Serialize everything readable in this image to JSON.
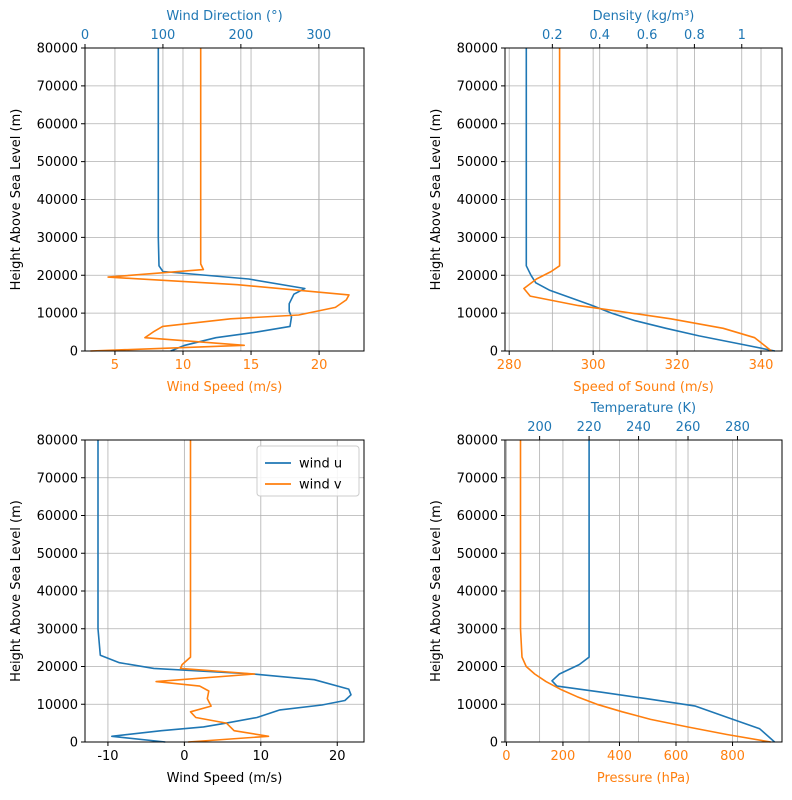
{
  "colors": {
    "c1": "#1f77b4",
    "c2": "#ff7f0e",
    "axis": "#000000",
    "grid": "#b0b0b0"
  },
  "chart_data": [
    {
      "id": "wind",
      "type": "line",
      "ylabel": "Height Above Sea Level (m)",
      "ylim": [
        0,
        80000
      ],
      "yticks": [
        0,
        10000,
        20000,
        30000,
        40000,
        50000,
        60000,
        70000,
        80000
      ],
      "grid": true,
      "bottom_axis": {
        "label": "Wind Speed (m/s)",
        "color": "#ff7f0e",
        "lim": [
          2.8,
          23.3
        ],
        "ticks": [
          5,
          10,
          15,
          20
        ]
      },
      "top_axis": {
        "label": "Wind Direction (°)",
        "color": "#1f77b4",
        "lim": [
          0,
          358
        ],
        "ticks": [
          0,
          100,
          200,
          300
        ]
      },
      "series": [
        {
          "axis": "top",
          "color": "#1f77b4",
          "points": [
            [
              110,
              0
            ],
            [
              128,
              1500
            ],
            [
              168,
              3500
            ],
            [
              220,
              5000
            ],
            [
              263,
              6500
            ],
            [
              265,
              9000
            ],
            [
              262,
              10500
            ],
            [
              262,
              12500
            ],
            [
              268,
              15000
            ],
            [
              282,
              16500
            ],
            [
              210,
              19000
            ],
            [
              100,
              21000
            ],
            [
              95,
              22500
            ],
            [
              94,
              30000
            ],
            [
              94,
              50000
            ],
            [
              94,
              70000
            ],
            [
              94,
              80000
            ]
          ]
        },
        {
          "axis": "bottom",
          "color": "#ff7f0e",
          "points": [
            [
              3.2,
              0
            ],
            [
              14.5,
              1500
            ],
            [
              7.2,
              3500
            ],
            [
              7.8,
              5000
            ],
            [
              8.5,
              6500
            ],
            [
              13.5,
              8500
            ],
            [
              18.5,
              9500
            ],
            [
              21.2,
              11500
            ],
            [
              22.0,
              13500
            ],
            [
              22.2,
              14800
            ],
            [
              14.0,
              17500
            ],
            [
              4.5,
              19500
            ],
            [
              11.5,
              21500
            ],
            [
              11.3,
              23000
            ],
            [
              11.3,
              30000
            ],
            [
              11.3,
              50000
            ],
            [
              11.3,
              70000
            ],
            [
              11.3,
              80000
            ]
          ]
        }
      ]
    },
    {
      "id": "density",
      "type": "line",
      "ylabel": "Height Above Sea Level (m)",
      "ylim": [
        0,
        80000
      ],
      "yticks": [
        0,
        10000,
        20000,
        30000,
        40000,
        50000,
        60000,
        70000,
        80000
      ],
      "grid": true,
      "bottom_axis": {
        "label": "Speed of Sound (m/s)",
        "color": "#ff7f0e",
        "lim": [
          279,
          345
        ],
        "ticks": [
          280,
          300,
          320,
          340
        ]
      },
      "top_axis": {
        "label": "Density (kg/m³)",
        "color": "#1f77b4",
        "lim": [
          0.0,
          1.17
        ],
        "ticks": [
          0.2,
          0.4,
          0.6,
          0.8,
          1.0
        ]
      },
      "series": [
        {
          "axis": "top",
          "color": "#1f77b4",
          "points": [
            [
              1.14,
              0
            ],
            [
              0.98,
              2000
            ],
            [
              0.82,
              4000
            ],
            [
              0.68,
              6000
            ],
            [
              0.55,
              8000
            ],
            [
              0.45,
              10000
            ],
            [
              0.37,
              12000
            ],
            [
              0.28,
              14000
            ],
            [
              0.19,
              16000
            ],
            [
              0.13,
              18000
            ],
            [
              0.11,
              20000
            ],
            [
              0.09,
              22500
            ],
            [
              0.09,
              30000
            ],
            [
              0.09,
              50000
            ],
            [
              0.09,
              80000
            ]
          ]
        },
        {
          "axis": "bottom",
          "color": "#ff7f0e",
          "points": [
            [
              342.5,
              0
            ],
            [
              338.5,
              3500
            ],
            [
              331.0,
              6000
            ],
            [
              318.5,
              8500
            ],
            [
              306.0,
              10500
            ],
            [
              296.5,
              12000
            ],
            [
              285.0,
              14500
            ],
            [
              283.5,
              16500
            ],
            [
              286.5,
              19000
            ],
            [
              290.0,
              21000
            ],
            [
              292.0,
              22500
            ],
            [
              292.0,
              30000
            ],
            [
              292.0,
              50000
            ],
            [
              292.0,
              80000
            ]
          ]
        }
      ]
    },
    {
      "id": "wind-uv",
      "type": "line",
      "ylabel": "Height Above Sea Level (m)",
      "xlabel": "Wind Speed (m/s)",
      "ylim": [
        0,
        80000
      ],
      "yticks": [
        0,
        10000,
        20000,
        30000,
        40000,
        50000,
        60000,
        70000,
        80000
      ],
      "xlim": [
        -13,
        23.5
      ],
      "xticks": [
        -10,
        0,
        10,
        20
      ],
      "grid": true,
      "legend": {
        "position": "top-right",
        "entries": [
          "wind u",
          "wind v"
        ]
      },
      "series": [
        {
          "name": "wind u",
          "color": "#1f77b4",
          "points": [
            [
              -2.5,
              0
            ],
            [
              -9.5,
              1500
            ],
            [
              -3.0,
              3000
            ],
            [
              2.5,
              4000
            ],
            [
              5.5,
              5000
            ],
            [
              9.5,
              6500
            ],
            [
              12.5,
              8500
            ],
            [
              18.0,
              9800
            ],
            [
              21.0,
              11000
            ],
            [
              21.8,
              12500
            ],
            [
              21.5,
              14000
            ],
            [
              17.0,
              16500
            ],
            [
              9.0,
              18000
            ],
            [
              -4.0,
              19500
            ],
            [
              -8.5,
              21000
            ],
            [
              -11.0,
              23000
            ],
            [
              -11.3,
              30000
            ],
            [
              -11.3,
              50000
            ],
            [
              -11.3,
              80000
            ]
          ]
        },
        {
          "name": "wind v",
          "color": "#ff7f0e",
          "points": [
            [
              0.5,
              0
            ],
            [
              11.0,
              1500
            ],
            [
              6.5,
              3000
            ],
            [
              5.5,
              5000
            ],
            [
              1.5,
              6500
            ],
            [
              0.8,
              8000
            ],
            [
              3.5,
              9500
            ],
            [
              3.0,
              11500
            ],
            [
              3.2,
              13500
            ],
            [
              2.0,
              14800
            ],
            [
              -3.7,
              16000
            ],
            [
              9.2,
              18000
            ],
            [
              -0.5,
              19500
            ],
            [
              -0.3,
              20500
            ],
            [
              0.8,
              22500
            ],
            [
              0.8,
              30000
            ],
            [
              0.8,
              50000
            ],
            [
              0.8,
              80000
            ]
          ]
        }
      ]
    },
    {
      "id": "temp-pressure",
      "type": "line",
      "ylabel": "Height Above Sea Level (m)",
      "ylim": [
        0,
        80000
      ],
      "yticks": [
        0,
        10000,
        20000,
        30000,
        40000,
        50000,
        60000,
        70000,
        80000
      ],
      "grid": true,
      "bottom_axis": {
        "label": "Pressure (hPa)",
        "color": "#ff7f0e",
        "lim": [
          -5,
          975
        ],
        "ticks": [
          0,
          200,
          400,
          600,
          800
        ]
      },
      "top_axis": {
        "label": "Temperature (K)",
        "color": "#1f77b4",
        "lim": [
          186,
          298
        ],
        "ticks": [
          200,
          220,
          240,
          260,
          280
        ]
      },
      "series": [
        {
          "axis": "top",
          "color": "#1f77b4",
          "points": [
            [
              295,
              0
            ],
            [
              289,
              3500
            ],
            [
              276,
              6500
            ],
            [
              263,
              9500
            ],
            [
              243,
              11500
            ],
            [
              225,
              13200
            ],
            [
              207,
              14800
            ],
            [
              205,
              16200
            ],
            [
              208,
              18000
            ],
            [
              216,
              20500
            ],
            [
              220,
              22500
            ],
            [
              220,
              30000
            ],
            [
              220,
              50000
            ],
            [
              220,
              80000
            ]
          ]
        },
        {
          "axis": "bottom",
          "color": "#ff7f0e",
          "points": [
            [
              935,
              0
            ],
            [
              780,
              2000
            ],
            [
              640,
              4000
            ],
            [
              510,
              6000
            ],
            [
              410,
              8000
            ],
            [
              320,
              10000
            ],
            [
              250,
              12000
            ],
            [
              190,
              14000
            ],
            [
              140,
              16000
            ],
            [
              100,
              18000
            ],
            [
              70,
              20000
            ],
            [
              55,
              22500
            ],
            [
              50,
              30000
            ],
            [
              50,
              50000
            ],
            [
              50,
              80000
            ]
          ]
        }
      ]
    }
  ]
}
